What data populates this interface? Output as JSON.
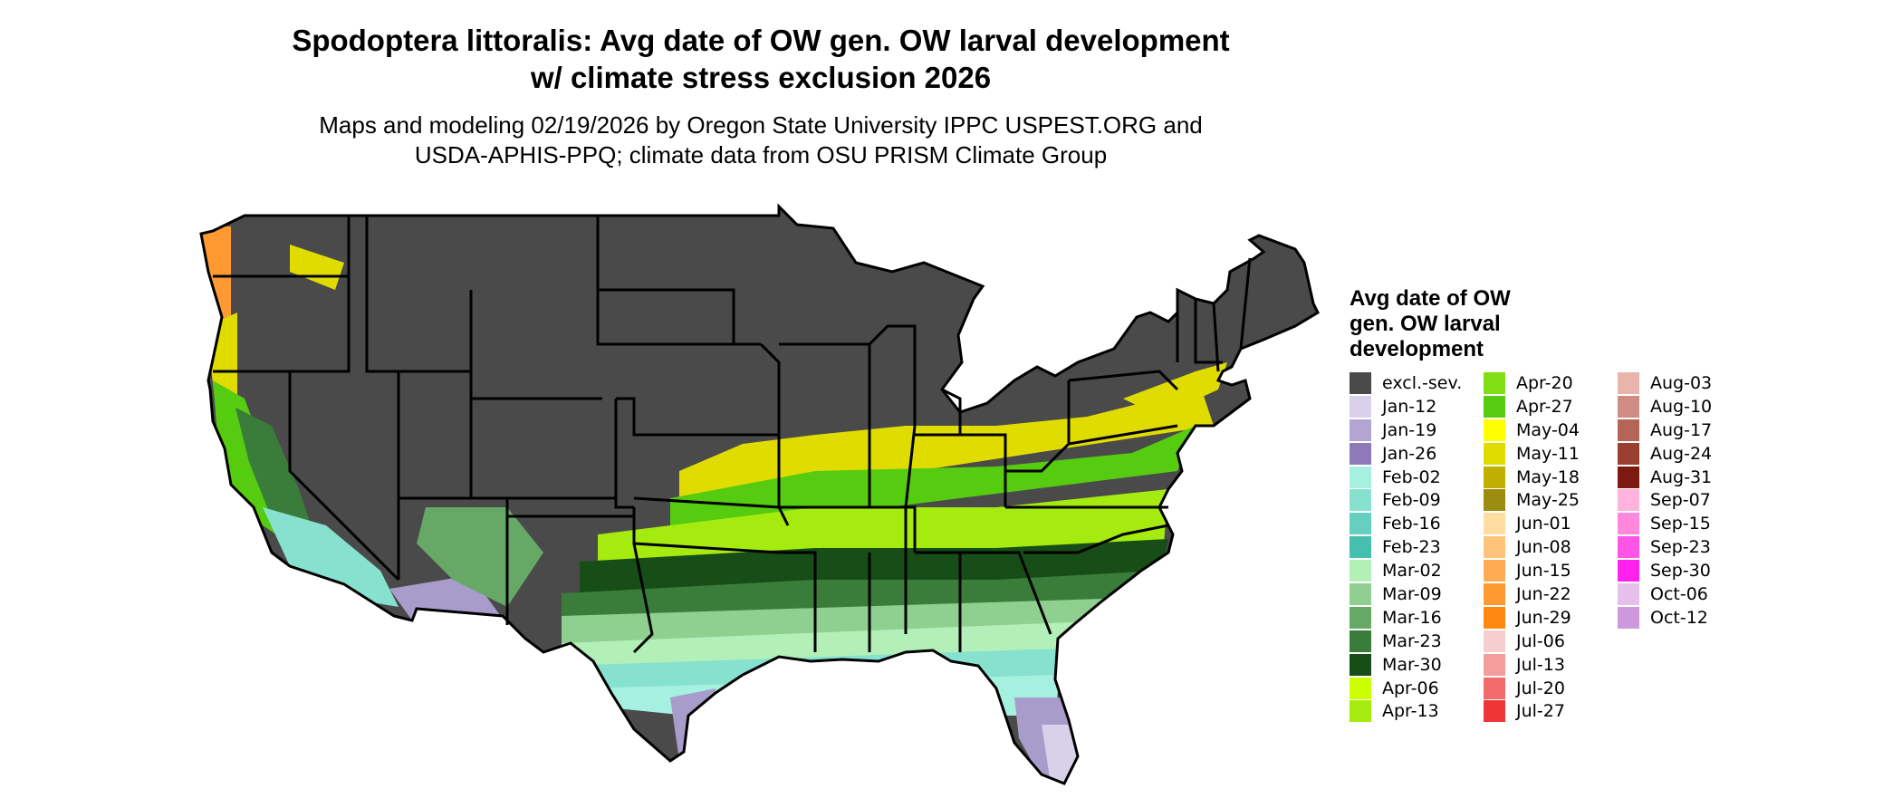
{
  "title_line1": "Spodoptera littoralis: Avg date of OW gen. OW larval development",
  "title_line2": "w/ climate stress exclusion 2026",
  "subtitle_line1": "Maps and modeling 02/19/2026 by Oregon State University IPPC USPEST.ORG and",
  "subtitle_line2": "USDA-APHIS-PPQ; climate data from OSU PRISM Climate Group",
  "legend": {
    "title_line1": "Avg date of OW",
    "title_line2": "gen. OW larval",
    "title_line3": "development",
    "items": [
      {
        "label": "excl.-sev.",
        "color": "#4a4a4a"
      },
      {
        "label": "Jan-12",
        "color": "#d9d1ea"
      },
      {
        "label": "Jan-19",
        "color": "#b3a5d3"
      },
      {
        "label": "Jan-26",
        "color": "#8e7ab9"
      },
      {
        "label": "Feb-02",
        "color": "#a6f0e0"
      },
      {
        "label": "Feb-09",
        "color": "#87e1cf"
      },
      {
        "label": "Feb-16",
        "color": "#66d0c0"
      },
      {
        "label": "Feb-23",
        "color": "#45bfae"
      },
      {
        "label": "Mar-02",
        "color": "#b3f0b8"
      },
      {
        "label": "Mar-09",
        "color": "#8fcf8f"
      },
      {
        "label": "Mar-16",
        "color": "#66a866"
      },
      {
        "label": "Mar-23",
        "color": "#3a7d3a"
      },
      {
        "label": "Mar-30",
        "color": "#174d17"
      },
      {
        "label": "Apr-06",
        "color": "#ccff00"
      },
      {
        "label": "Apr-13",
        "color": "#a5eb0f"
      },
      {
        "label": "Apr-20",
        "color": "#80de12"
      },
      {
        "label": "Apr-27",
        "color": "#55cc10"
      },
      {
        "label": "May-04",
        "color": "#ffff00"
      },
      {
        "label": "May-11",
        "color": "#e0dc00"
      },
      {
        "label": "May-18",
        "color": "#bfb000"
      },
      {
        "label": "May-25",
        "color": "#9c8c10"
      },
      {
        "label": "Jun-01",
        "color": "#ffdca0"
      },
      {
        "label": "Jun-08",
        "color": "#ffc47a"
      },
      {
        "label": "Jun-15",
        "color": "#ffac55"
      },
      {
        "label": "Jun-22",
        "color": "#ff9a33"
      },
      {
        "label": "Jun-29",
        "color": "#ff8811"
      },
      {
        "label": "Jul-06",
        "color": "#f5cfcf"
      },
      {
        "label": "Jul-13",
        "color": "#f39d9d"
      },
      {
        "label": "Jul-20",
        "color": "#f26a6a"
      },
      {
        "label": "Jul-27",
        "color": "#f03535"
      },
      {
        "label": "Aug-03",
        "color": "#e8b4ac"
      },
      {
        "label": "Aug-10",
        "color": "#cf8c82"
      },
      {
        "label": "Aug-17",
        "color": "#b56555"
      },
      {
        "label": "Aug-24",
        "color": "#9a4030"
      },
      {
        "label": "Aug-31",
        "color": "#7a1a10"
      },
      {
        "label": "Sep-07",
        "color": "#ffb3dd"
      },
      {
        "label": "Sep-15",
        "color": "#ff88dd"
      },
      {
        "label": "Sep-23",
        "color": "#ff55e6"
      },
      {
        "label": "Sep-30",
        "color": "#ff22ee"
      },
      {
        "label": "Oct-06",
        "color": "#e6bfea"
      },
      {
        "label": "Oct-12",
        "color": "#cc99dd"
      }
    ]
  },
  "map_colors": {
    "background": "#4a4a4a",
    "border": "#000000",
    "texas_purple": "#a89ccb",
    "florida_south": "#d9d1ea"
  }
}
